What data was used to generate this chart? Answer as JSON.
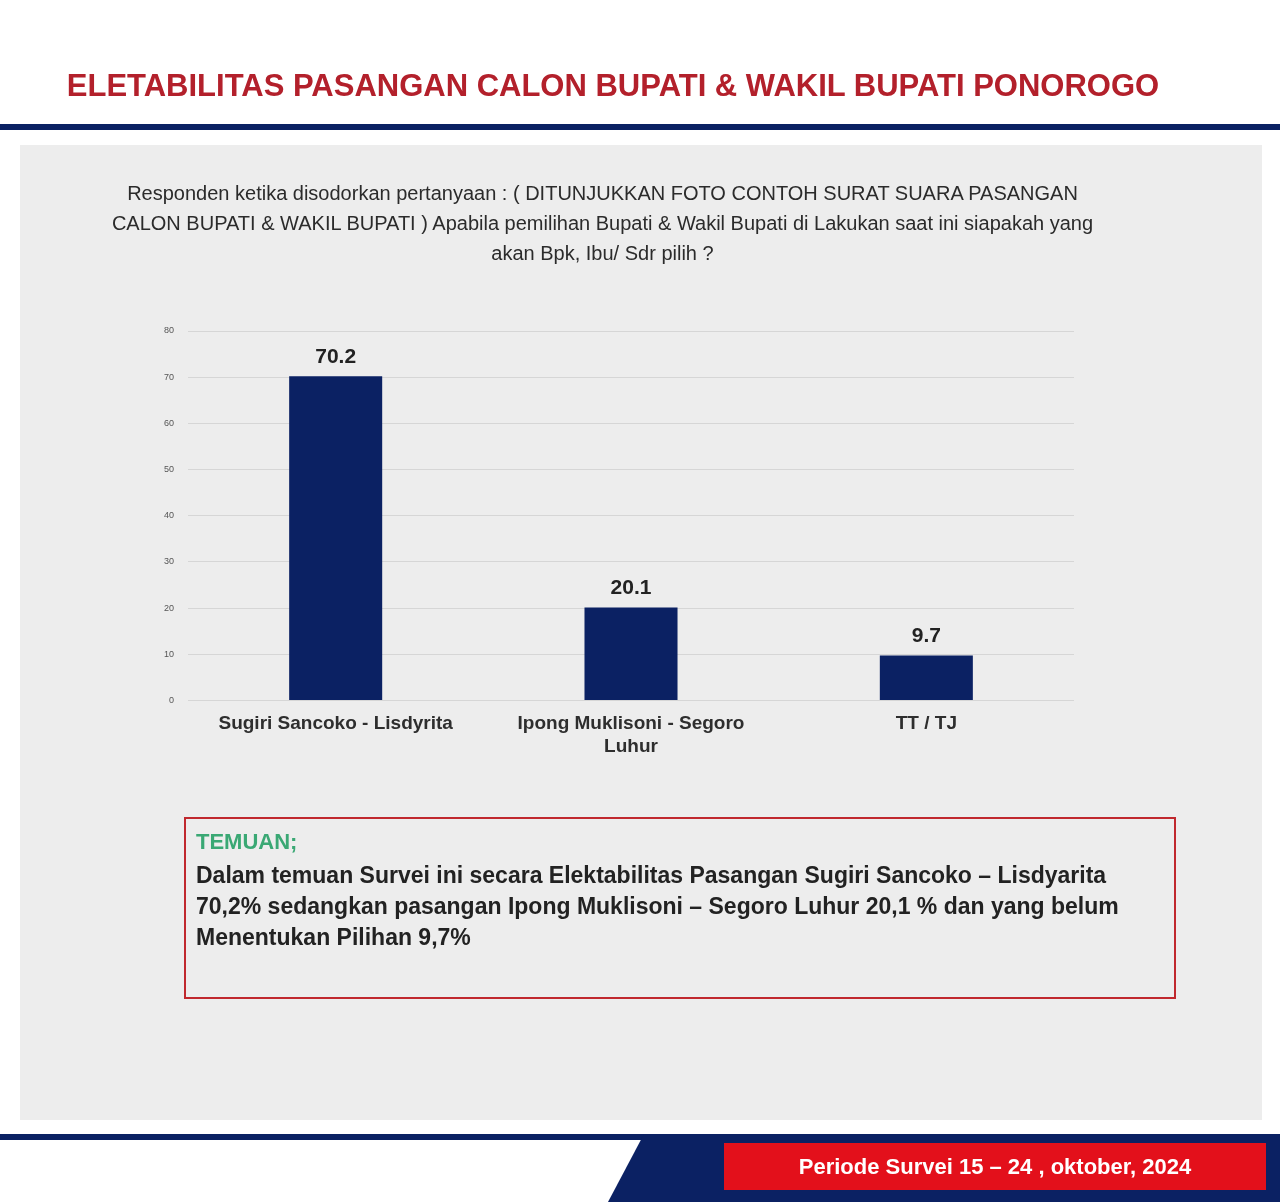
{
  "chart_data": {
    "type": "bar",
    "title": "ELETABILITAS PASANGAN CALON BUPATI & WAKIL BUPATI PONOROGO",
    "subtitle": "Responden ketika disodorkan pertanyaan : ( DITUNJUKKAN FOTO CONTOH SURAT SUARA PASANGAN CALON BUPATI & WAKIL BUPATI ) Apabila pemilihan Bupati & Wakil Bupati di Lakukan saat ini siapakah yang akan Bpk, Ibu/ Sdr pilih ?",
    "categories": [
      "Sugiri Sancoko - Lisdyrita",
      "Ipong Muklisoni - Segoro Luhur",
      "TT / TJ"
    ],
    "values": [
      70.2,
      20.1,
      9.7
    ],
    "color": "#0b2163",
    "ylim": [
      0,
      80
    ],
    "yticks": [
      0,
      10,
      20,
      30,
      40,
      50,
      60,
      70,
      80
    ],
    "grid": "y",
    "data_labels": true,
    "annotations": [
      "TEMUAN;",
      "Dalam temuan Survei ini secara Elektabilitas Pasangan Sugiri Sancoko – Lisdyarita 70,2% sedangkan pasangan Ipong Muklisoni – Segoro Luhur 20,1 % dan yang belum Menentukan Pilihan 9,7%",
      "Periode Survei 15 – 24 , oktober, 2024"
    ]
  }
}
